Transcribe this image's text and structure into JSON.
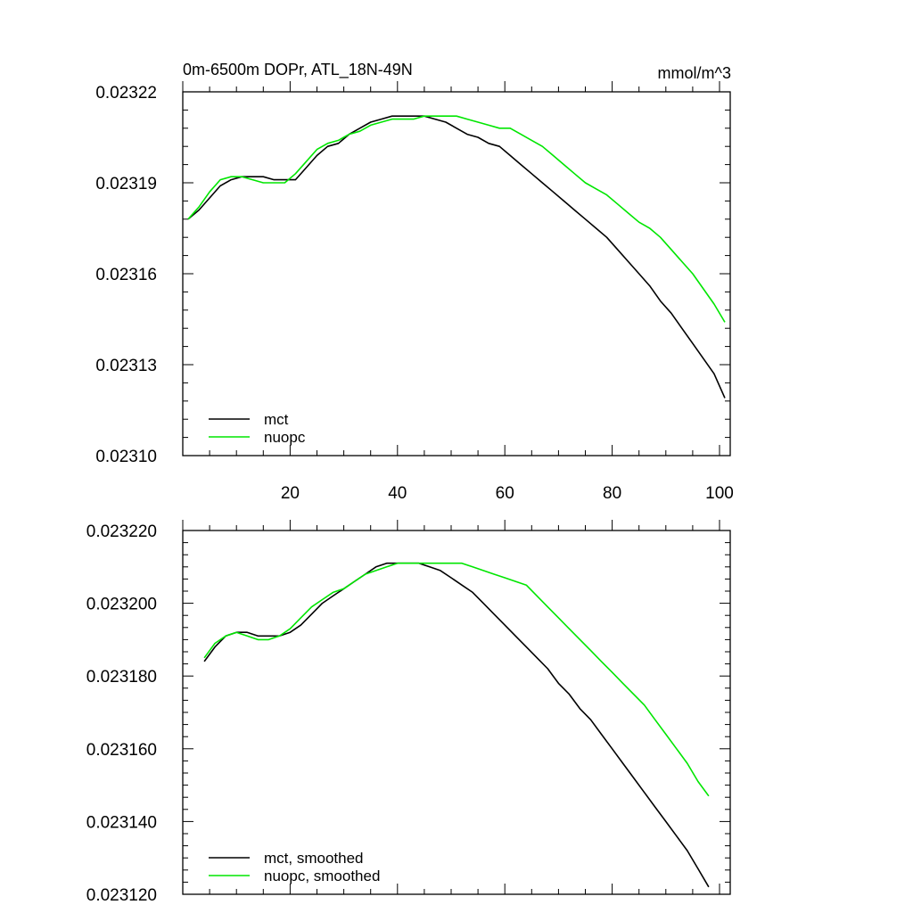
{
  "chart_data": [
    {
      "type": "line",
      "title": "0m-6500m DOPr, ATL_18N-49N",
      "units": "mmol/m^3",
      "xlabel": "",
      "ylabel": "",
      "xlim": [
        0,
        102
      ],
      "ylim": [
        0.0231,
        0.02322
      ],
      "xticks": [
        20,
        40,
        60,
        80,
        100
      ],
      "xtick_labels": [
        "20",
        "40",
        "60",
        "80",
        "100"
      ],
      "yticks": [
        0.0231,
        0.02313,
        0.02316,
        0.02319,
        0.02322
      ],
      "ytick_labels": [
        "0.02310",
        "0.02313",
        "0.02316",
        "0.02319",
        "0.02322"
      ],
      "legend_position": "bottom-left",
      "x": [
        1,
        3,
        5,
        7,
        9,
        11,
        13,
        15,
        17,
        19,
        21,
        23,
        25,
        27,
        29,
        31,
        33,
        35,
        37,
        39,
        41,
        43,
        45,
        47,
        49,
        51,
        53,
        55,
        57,
        59,
        61,
        63,
        65,
        67,
        69,
        71,
        73,
        75,
        77,
        79,
        81,
        83,
        85,
        87,
        89,
        91,
        93,
        95,
        97,
        99,
        101
      ],
      "series": [
        {
          "name": "mct",
          "color": "#000000",
          "values": [
            0.023178,
            0.023181,
            0.023185,
            0.023189,
            0.023191,
            0.023192,
            0.023192,
            0.023192,
            0.023191,
            0.023191,
            0.023191,
            0.023195,
            0.023199,
            0.023202,
            0.023203,
            0.023206,
            0.023208,
            0.02321,
            0.023211,
            0.023212,
            0.023212,
            0.023212,
            0.023212,
            0.023211,
            0.02321,
            0.023208,
            0.023206,
            0.023205,
            0.023203,
            0.023202,
            0.023199,
            0.023196,
            0.023193,
            0.02319,
            0.023187,
            0.023184,
            0.023181,
            0.023178,
            0.023175,
            0.023172,
            0.023168,
            0.023164,
            0.02316,
            0.023156,
            0.023151,
            0.023147,
            0.023142,
            0.023137,
            0.023132,
            0.023127,
            0.023119
          ]
        },
        {
          "name": "nuopc",
          "color": "#00e600",
          "values": [
            0.023178,
            0.023182,
            0.023187,
            0.023191,
            0.023192,
            0.023192,
            0.023191,
            0.02319,
            0.02319,
            0.02319,
            0.023193,
            0.023197,
            0.023201,
            0.023203,
            0.023204,
            0.023206,
            0.023207,
            0.023209,
            0.02321,
            0.023211,
            0.023211,
            0.023211,
            0.023212,
            0.023212,
            0.023212,
            0.023212,
            0.023211,
            0.02321,
            0.023209,
            0.023208,
            0.023208,
            0.023206,
            0.023204,
            0.023202,
            0.023199,
            0.023196,
            0.023193,
            0.02319,
            0.023188,
            0.023186,
            0.023183,
            0.02318,
            0.023177,
            0.023175,
            0.023172,
            0.023168,
            0.023164,
            0.02316,
            0.023155,
            0.02315,
            0.023144
          ]
        }
      ]
    },
    {
      "type": "line",
      "title": "",
      "xlabel": "",
      "ylabel": "",
      "xlim": [
        0,
        102
      ],
      "ylim": [
        0.02312,
        0.02322
      ],
      "xticks": [
        20,
        40,
        60,
        80,
        100
      ],
      "yticks": [
        0.02312,
        0.02314,
        0.02316,
        0.02318,
        0.0232,
        0.02322
      ],
      "ytick_labels": [
        "0.023120",
        "0.023140",
        "0.023160",
        "0.023180",
        "0.023200",
        "0.023220"
      ],
      "legend_position": "bottom-left",
      "x": [
        4,
        6,
        8,
        10,
        12,
        14,
        16,
        18,
        20,
        22,
        24,
        26,
        28,
        30,
        32,
        34,
        36,
        38,
        40,
        42,
        44,
        46,
        48,
        50,
        52,
        54,
        56,
        58,
        60,
        62,
        64,
        66,
        68,
        70,
        72,
        74,
        76,
        78,
        80,
        82,
        84,
        86,
        88,
        90,
        92,
        94,
        96,
        98
      ],
      "series": [
        {
          "name": "mct, smoothed",
          "color": "#000000",
          "values": [
            0.023184,
            0.023188,
            0.023191,
            0.023192,
            0.023192,
            0.023191,
            0.023191,
            0.023191,
            0.023192,
            0.023194,
            0.023197,
            0.0232,
            0.023202,
            0.023204,
            0.023206,
            0.023208,
            0.02321,
            0.023211,
            0.023211,
            0.023211,
            0.023211,
            0.02321,
            0.023209,
            0.023207,
            0.023205,
            0.023203,
            0.0232,
            0.023197,
            0.023194,
            0.023191,
            0.023188,
            0.023185,
            0.023182,
            0.023178,
            0.023175,
            0.023171,
            0.023168,
            0.023164,
            0.02316,
            0.023156,
            0.023152,
            0.023148,
            0.023144,
            0.02314,
            0.023136,
            0.023132,
            0.023127,
            0.023122
          ]
        },
        {
          "name": "nuopc, smoothed",
          "color": "#00e600",
          "values": [
            0.023185,
            0.023189,
            0.023191,
            0.023192,
            0.023191,
            0.02319,
            0.02319,
            0.023191,
            0.023193,
            0.023196,
            0.023199,
            0.023201,
            0.023203,
            0.023204,
            0.023206,
            0.023208,
            0.023209,
            0.02321,
            0.023211,
            0.023211,
            0.023211,
            0.023211,
            0.023211,
            0.023211,
            0.023211,
            0.02321,
            0.023209,
            0.023208,
            0.023207,
            0.023206,
            0.023205,
            0.023202,
            0.023199,
            0.023196,
            0.023193,
            0.02319,
            0.023187,
            0.023184,
            0.023181,
            0.023178,
            0.023175,
            0.023172,
            0.023168,
            0.023164,
            0.02316,
            0.023156,
            0.023151,
            0.023147
          ]
        }
      ]
    }
  ]
}
